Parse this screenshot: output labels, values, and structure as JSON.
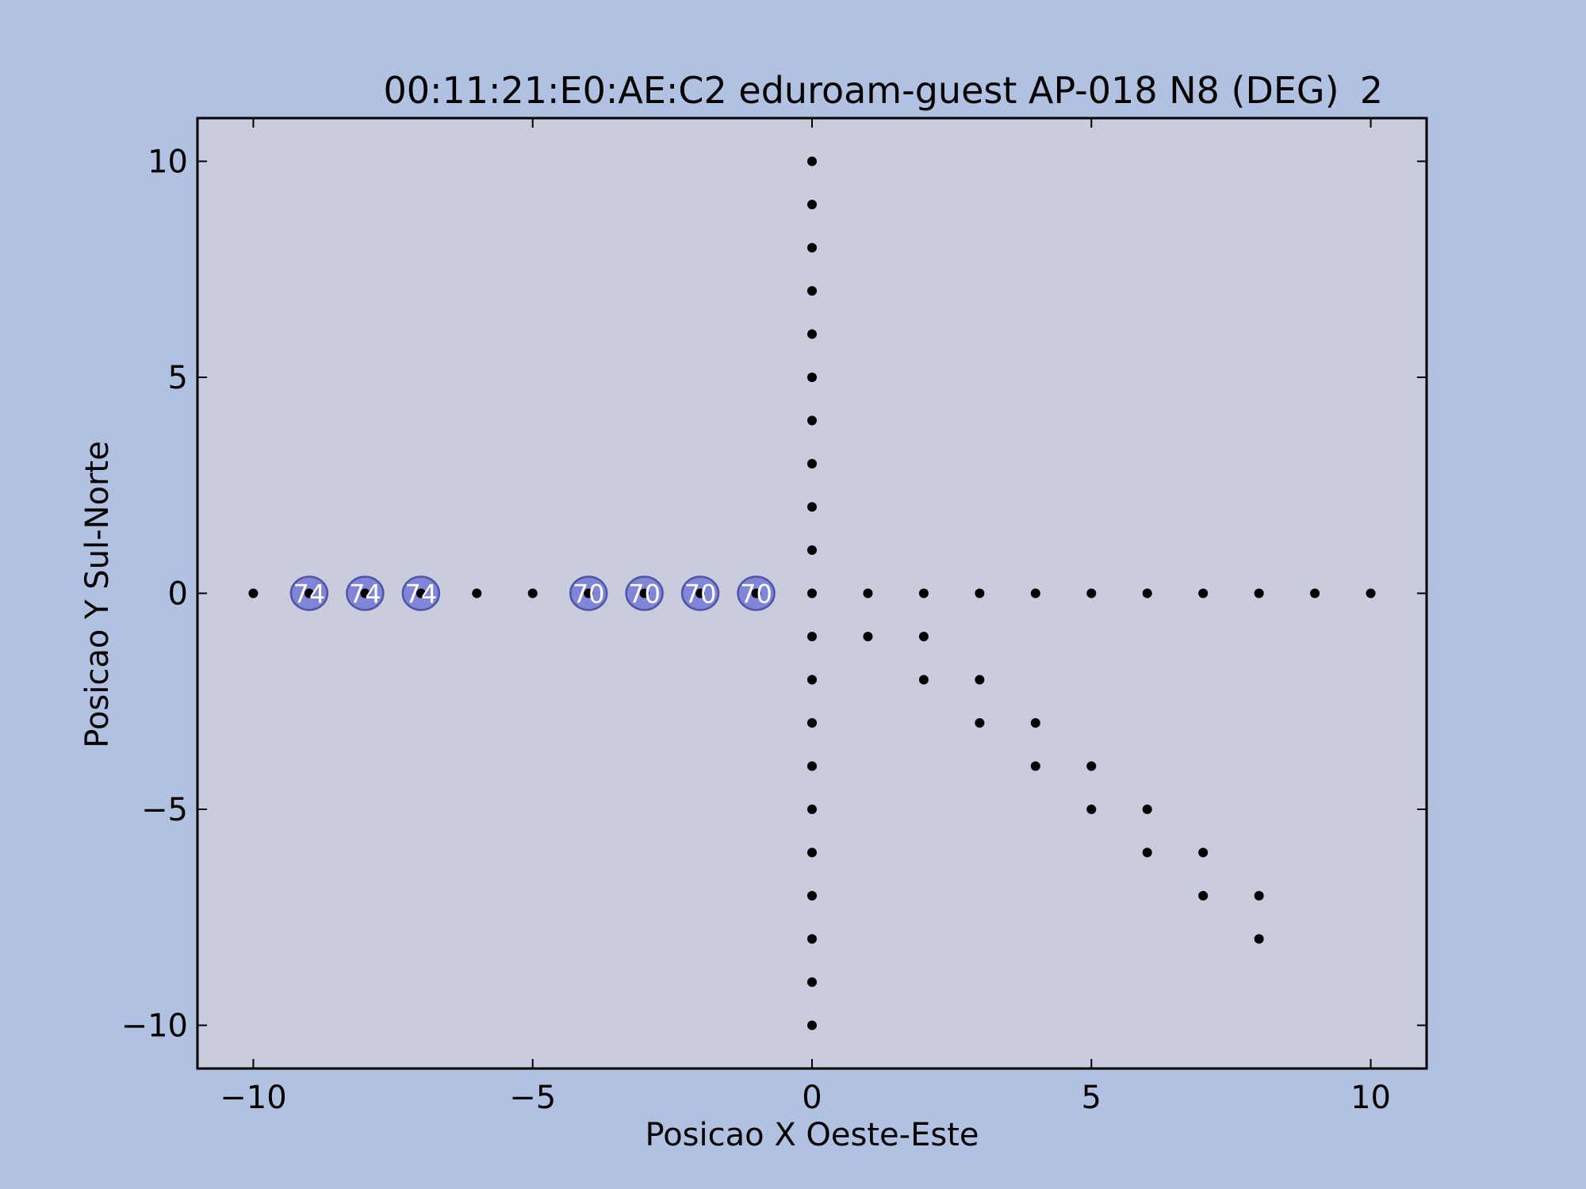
{
  "colors": {
    "figure_bg": "#b0c1e1",
    "axes_bg": "#c8ccdc",
    "point": "#000000",
    "highlight_fill": "#7c82d8",
    "highlight_edge": "#4a4e9e",
    "highlight_text": "#ffffff"
  },
  "chart_data": {
    "type": "scatter",
    "title": "00:11:21:E0:AE:C2 eduroam-guest AP-018 N8 (DEG)",
    "title_suffix": "2",
    "xlabel": "Posicao X Oeste-Este",
    "ylabel": "Posicao Y Sul-Norte",
    "xlim": [
      -11,
      11
    ],
    "ylim": [
      -11,
      11
    ],
    "xticks": [
      -10,
      -5,
      0,
      5,
      10
    ],
    "yticks": [
      -10,
      -5,
      0,
      5,
      10
    ],
    "xtick_labels": [
      "−10",
      "−5",
      "0",
      "5",
      "10"
    ],
    "ytick_labels": [
      "−10",
      "−5",
      "0",
      "5",
      "10"
    ],
    "grid": false,
    "points": [
      [
        -10,
        0
      ],
      [
        -9,
        0
      ],
      [
        -8,
        0
      ],
      [
        -7,
        0
      ],
      [
        -6,
        0
      ],
      [
        -5,
        0
      ],
      [
        -4,
        0
      ],
      [
        -3,
        0
      ],
      [
        -2,
        0
      ],
      [
        -1,
        0
      ],
      [
        0,
        0
      ],
      [
        1,
        0
      ],
      [
        2,
        0
      ],
      [
        3,
        0
      ],
      [
        4,
        0
      ],
      [
        5,
        0
      ],
      [
        6,
        0
      ],
      [
        7,
        0
      ],
      [
        8,
        0
      ],
      [
        9,
        0
      ],
      [
        10,
        0
      ],
      [
        0,
        1
      ],
      [
        0,
        2
      ],
      [
        0,
        3
      ],
      [
        0,
        4
      ],
      [
        0,
        5
      ],
      [
        0,
        6
      ],
      [
        0,
        7
      ],
      [
        0,
        8
      ],
      [
        0,
        9
      ],
      [
        0,
        10
      ],
      [
        0,
        -1
      ],
      [
        0,
        -2
      ],
      [
        0,
        -3
      ],
      [
        0,
        -4
      ],
      [
        0,
        -5
      ],
      [
        0,
        -6
      ],
      [
        0,
        -7
      ],
      [
        0,
        -8
      ],
      [
        0,
        -9
      ],
      [
        0,
        -10
      ],
      [
        1,
        -1
      ],
      [
        2,
        -1
      ],
      [
        2,
        -2
      ],
      [
        3,
        -2
      ],
      [
        3,
        -3
      ],
      [
        4,
        -3
      ],
      [
        4,
        -4
      ],
      [
        5,
        -4
      ],
      [
        5,
        -5
      ],
      [
        6,
        -5
      ],
      [
        6,
        -6
      ],
      [
        7,
        -6
      ],
      [
        7,
        -7
      ],
      [
        8,
        -7
      ],
      [
        8,
        -8
      ]
    ],
    "annotations": [
      {
        "x": -9,
        "y": 0,
        "label": "74"
      },
      {
        "x": -8,
        "y": 0,
        "label": "74"
      },
      {
        "x": -7,
        "y": 0,
        "label": "74"
      },
      {
        "x": -4,
        "y": 0,
        "label": "70"
      },
      {
        "x": -3,
        "y": 0,
        "label": "70"
      },
      {
        "x": -2,
        "y": 0,
        "label": "70"
      },
      {
        "x": -1,
        "y": 0,
        "label": "70"
      }
    ]
  }
}
